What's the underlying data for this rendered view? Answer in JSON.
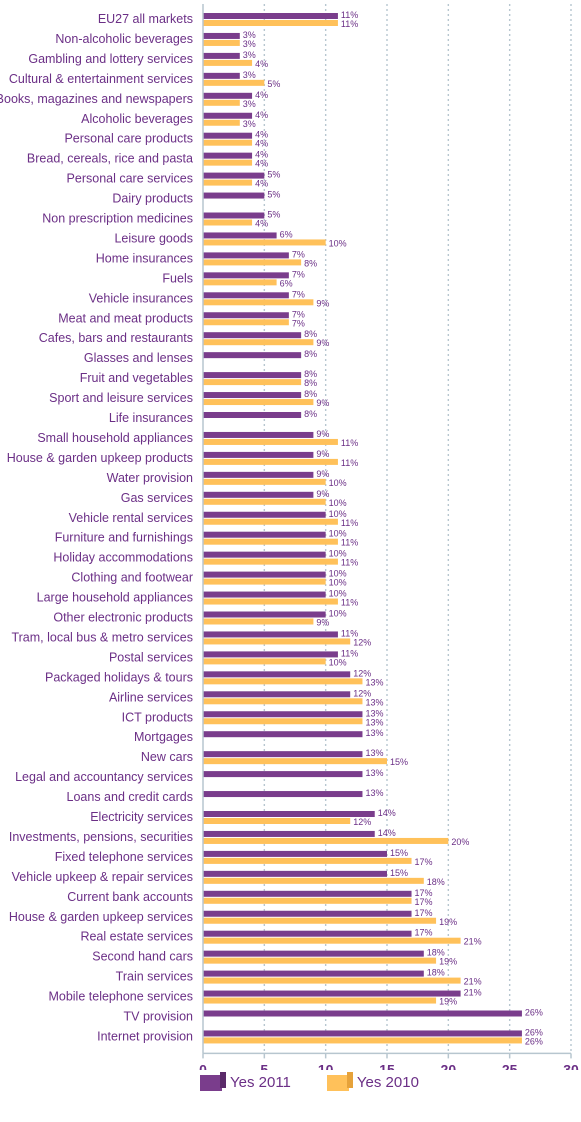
{
  "colors": {
    "series_2011": "#7a3d8c",
    "series_2010": "#ffc15a",
    "text": "#6b2f86",
    "grid": "#b7c6cf"
  },
  "legend": {
    "label_2011": "Yes 2011",
    "label_2010": "Yes 2010"
  },
  "chart_data": {
    "type": "bar",
    "orientation": "horizontal",
    "xlim": [
      0,
      30
    ],
    "x_ticks": [
      0,
      5,
      10,
      15,
      20,
      25,
      30
    ],
    "grid": "vertical dotted",
    "legend_position": "bottom",
    "categories": [
      "EU27 all markets",
      "Non-alcoholic beverages",
      "Gambling and lottery services",
      "Cultural & entertainment services",
      "Books, magazines and newspapers",
      "Alcoholic beverages",
      "Personal care products",
      "Bread, cereals, rice and pasta",
      "Personal care services",
      "Dairy products",
      "Non prescription medicines",
      "Leisure goods",
      "Home insurances",
      "Fuels",
      "Vehicle insurances",
      "Meat and meat products",
      "Cafes, bars and restaurants",
      "Glasses and lenses",
      "Fruit and vegetables",
      "Sport and leisure services",
      "Life insurances",
      "Small household appliances",
      "House & garden upkeep products",
      "Water provision",
      "Gas services",
      "Vehicle rental services",
      "Furniture and furnishings",
      "Holiday accommodations",
      "Clothing and footwear",
      "Large household appliances",
      "Other electronic products",
      "Tram, local bus & metro services",
      "Postal services",
      "Packaged holidays & tours",
      "Airline services",
      "ICT products",
      "Mortgages",
      "New cars",
      "Legal and accountancy services",
      "Loans and credit cards",
      "Electricity services",
      "Investments, pensions, securities",
      "Fixed telephone services",
      "Vehicle upkeep & repair services",
      "Current bank accounts",
      "House & garden upkeep services",
      "Real estate services",
      "Second hand cars",
      "Train services",
      "Mobile telephone services",
      "TV provision",
      "Internet provision"
    ],
    "series": [
      {
        "name": "Yes 2011",
        "values": [
          11,
          3,
          3,
          3,
          4,
          4,
          4,
          4,
          5,
          5,
          5,
          6,
          7,
          7,
          7,
          7,
          8,
          8,
          8,
          8,
          8,
          9,
          9,
          9,
          9,
          10,
          10,
          10,
          10,
          10,
          10,
          11,
          11,
          12,
          12,
          13,
          13,
          13,
          13,
          13,
          14,
          14,
          15,
          15,
          17,
          17,
          17,
          18,
          18,
          21,
          26,
          26
        ]
      },
      {
        "name": "Yes 2010",
        "values": [
          11,
          3,
          4,
          5,
          3,
          3,
          4,
          4,
          4,
          null,
          4,
          10,
          8,
          6,
          9,
          7,
          9,
          null,
          8,
          9,
          null,
          11,
          11,
          10,
          10,
          11,
          11,
          11,
          10,
          11,
          9,
          12,
          10,
          13,
          13,
          13,
          null,
          15,
          null,
          null,
          12,
          20,
          17,
          18,
          17,
          19,
          21,
          19,
          21,
          19,
          null,
          26
        ]
      }
    ]
  }
}
